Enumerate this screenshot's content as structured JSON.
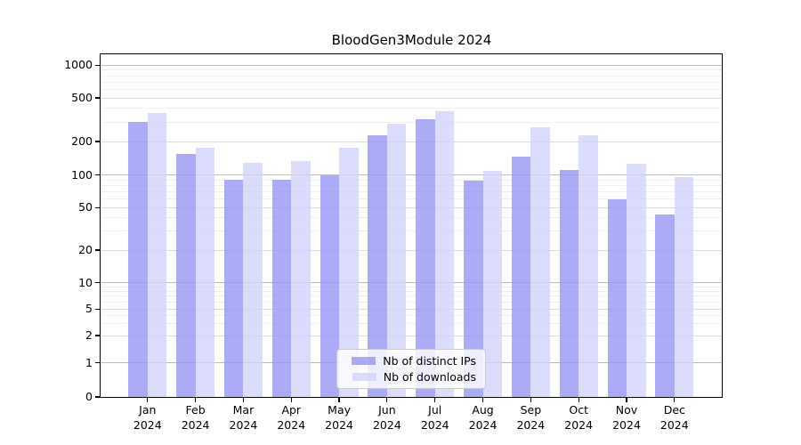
{
  "chart_data": {
    "type": "bar",
    "title": "BloodGen3Module 2024",
    "xlabel": "",
    "ylabel": "",
    "yscale": "symlog",
    "ylim": [
      0,
      1250
    ],
    "grid": true,
    "legend_position": "lower center",
    "categories": [
      "Jan 2024",
      "Feb 2024",
      "Mar 2024",
      "Apr 2024",
      "May 2024",
      "Jun 2024",
      "Jul 2024",
      "Aug 2024",
      "Sep 2024",
      "Oct 2024",
      "Nov 2024",
      "Dec 2024"
    ],
    "y_ticks": [
      0,
      1,
      2,
      5,
      10,
      20,
      50,
      100,
      200,
      500,
      1000
    ],
    "y_tick_labels": [
      "0",
      "1",
      "2",
      "5",
      "10",
      "20",
      "50",
      "100",
      "200",
      "500",
      "1000"
    ],
    "series": [
      {
        "name": "Nb of distinct IPs",
        "color": "rgba(150,150,245,0.8)",
        "color_hex": "#a9a9f4",
        "values": [
          300,
          155,
          90,
          90,
          100,
          230,
          320,
          88,
          145,
          112,
          60,
          43
        ]
      },
      {
        "name": "Nb of downloads",
        "color": "rgba(210,210,250,0.8)",
        "color_hex": "#dcdcf9",
        "values": [
          365,
          175,
          128,
          133,
          175,
          290,
          378,
          110,
          270,
          230,
          126,
          95
        ]
      }
    ]
  }
}
